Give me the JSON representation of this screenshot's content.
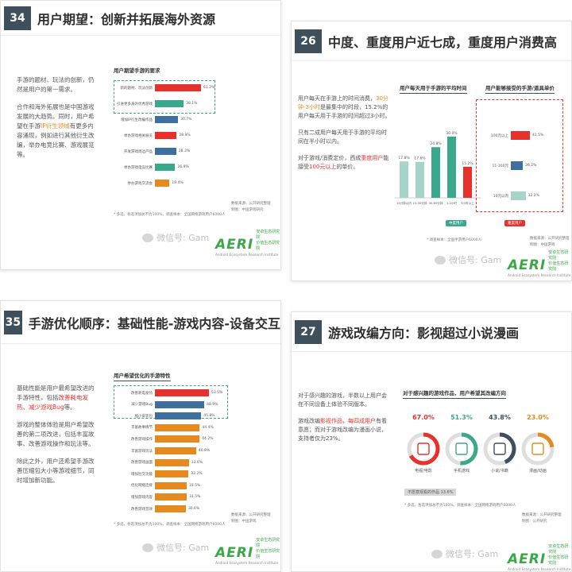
{
  "slides": {
    "s34": {
      "num": "34",
      "title": "用户期望：创新并拓展海外资源",
      "para1": "手游的题材、玩法的创新，仍然是用户的第一需求。",
      "para2a": "合作和海外拓展也是中国游戏发展的大趋势。同时，用户希望在手游",
      "para2hl": "IP衍生领域",
      "para2b": "有更多内容涌现，例如进行其他衍生改编，举办电竞比赛、游戏展览等。",
      "chart_title": "用户期望手游的要求",
      "note": "* 多选，各选项加总不为100%。调查样本：全国网络游戏用户6000人",
      "src1": "数据来源：公开研究整理",
      "src2": "制图：中国游戏研究"
    },
    "s26": {
      "num": "26",
      "title": "中度、重度用户近七成，重度用户消费高",
      "para1a": "用户每天在手游上的时间消费，",
      "para1hl": "30分钟-3小时",
      "para1b": "是最集中的时段，15.2%的用户每天用于手游的时间超过3小时。",
      "para2": "只有二成用户每天用于手游的平均时间在半小时以内。",
      "para3a": "对于游戏/消费定价，西成",
      "para3hl": "重度用户",
      "para3b": "能接受",
      "para3hl2": "100元以上",
      "para3c": "的单价。",
      "chart1_title": "用户每天用于手游的平均时间",
      "chart2_title": "用户能够接受的手游/道具单价",
      "pill1": "中度用户",
      "pill2": "重度用户",
      "note": "* 调查样本：全国手游用户6000人",
      "src1": "数据来源：公开研究整理",
      "src2": "制图：中国游戏"
    },
    "s35": {
      "num": "35",
      "title": "手游优化顺序：基础性能-游戏内容-设备交互",
      "para1a": "基础性能是用户最希望改进的手游特性，包括",
      "para1hl": "改善耗电发热、减少游戏Bug",
      "para1b": "等。",
      "para2": "游戏的整体体验是用户希望改善的第二项改进，包括丰富故事、改善游戏操作和玩法等。",
      "para3": "除此之外，用户还希望手游改善压缩包大小等游戏细节，同时增加新功能。",
      "chart_title": "用户希望优化的手游特性",
      "note": "* 多选，各选项加总不为100%。调查样本：全国网络游戏用户6000人",
      "src1": "数据来源：公开研究整理",
      "src2": "制图：中国游戏"
    },
    "s27": {
      "num": "27",
      "title": "游戏改编方向：影视超过小说漫画",
      "para1": "对于感兴趣的游戏，半数以上用户会在不同设备上体验不同版本。",
      "para2a": "游戏改编",
      "para2hl": "影视作品",
      "para2b": "，",
      "para2hl2": "每四成用户",
      "para2c": "有看意愿；而对于游戏改编为漫画小说，支持者仅为23%。",
      "chart_title": "对于感兴趣的游戏作品，用户希望其改编方向",
      "footer": "不愿意观看的作品  13.6%",
      "note": "* 多选，各选项加总不为100%。调查样本：全国网络游戏用户6000人",
      "src1": "数据来源：公开研究整理",
      "src2": "制图：公开研究"
    }
  },
  "watermark": "微信号: Gam",
  "logo": {
    "main": "AERI",
    "cn": "安卓生态研究院",
    "cn2": "价值生态研究院",
    "en": "Android Ecosystem Research Institute"
  },
  "chart_data": [
    {
      "type": "bar",
      "orientation": "horizontal",
      "title": "用户期望手游的要求",
      "categories": [
        "新的题材、玩法创新",
        "引进更多海外优秀游戏",
        "增加IP衍生改编作品",
        "举办游戏相关展览",
        "开发游戏周边产品",
        "举办游戏电竞比赛",
        "举办游戏交流会"
      ],
      "values": [
        61.2,
        38.1,
        30.7,
        28.9,
        28.3,
        26.9,
        19.4
      ],
      "value_labels": [
        "61.2%",
        "38.1%",
        "30.7%",
        "28.9%",
        "28.3%",
        "26.9%",
        "19.4%"
      ],
      "colors": [
        "#e8302c",
        "#3aa88c",
        "#3f6f9c",
        "#e8302c",
        "#3f6f9c",
        "#3aa88c",
        "#e58a1f"
      ]
    },
    {
      "type": "bar",
      "title": "用户每天用于手游的平均时间",
      "categories": [
        "15分钟以内",
        "15-30分钟",
        "30-60分钟",
        "1-3小时",
        "3小时以上"
      ],
      "values": [
        17.8,
        17.6,
        24.8,
        30.0,
        15.2
      ],
      "value_labels": [
        "17.8%",
        "17.6%",
        "24.8%",
        "30.0%",
        "15.2%"
      ],
      "colors": [
        "#a7d4c8",
        "#a7d4c8",
        "#3aa88c",
        "#3aa88c",
        "#e8302c"
      ],
      "ylim": [
        0,
        35
      ]
    },
    {
      "type": "bar",
      "orientation": "horizontal",
      "title": "用户能够接受的手游/道具单价",
      "categories": [
        "100元以上",
        "11-100元",
        "10元以内"
      ],
      "values": [
        41.5,
        26.2,
        32.2
      ],
      "value_labels": [
        "41.5%",
        "26.2%",
        "32.2%"
      ],
      "colors": [
        "#e8302c",
        "#3f6f9c",
        "#a7d4c8"
      ]
    },
    {
      "type": "bar",
      "orientation": "horizontal",
      "title": "用户希望优化的手游特性",
      "categories": [
        "改善耗电发热",
        "减少游戏Bug",
        "缩小安装包",
        "丰富故事情节",
        "改善游戏操作",
        "丰富游戏玩法",
        "改善游戏画面",
        "增加社交功能",
        "优化网络连接",
        "增加游戏内容",
        "改善游戏音效"
      ],
      "values": [
        53.5,
        48.9,
        45.8,
        44.4,
        44.2,
        40.8,
        33.6,
        33.2,
        31.5,
        31.5,
        30.6
      ],
      "value_labels": [
        "53.5%",
        "48.9%",
        "45.8%",
        "44.4%",
        "44.2%",
        "40.8%",
        "33.6%",
        "33.2%",
        "31.5%",
        "31.5%",
        "30.6%"
      ],
      "colors": [
        "#e8302c",
        "#3f6f9c",
        "#3f6f9c",
        "#e58a1f",
        "#e58a1f",
        "#e58a1f",
        "#e58a1f",
        "#e58a1f",
        "#e58a1f",
        "#e58a1f",
        "#e58a1f"
      ]
    },
    {
      "type": "pie",
      "title": "对于感兴趣的游戏作品，用户希望其改编方向",
      "categories": [
        "电视/电影",
        "手机游戏",
        "小说/书籍",
        "漫画/动画"
      ],
      "values": [
        67.0,
        51.3,
        43.8,
        23.0
      ],
      "value_labels": [
        "67.0%",
        "51.3%",
        "43.8%",
        "23.0%"
      ],
      "colors": [
        "#e8302c",
        "#3aa88c",
        "#3f4f5c",
        "#e58a1f"
      ]
    }
  ]
}
